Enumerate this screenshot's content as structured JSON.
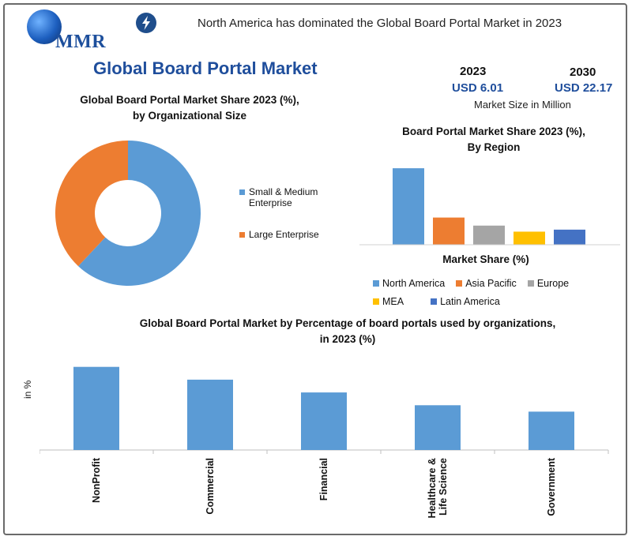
{
  "header": {
    "logo_text": "MMR",
    "headline": "North America has dominated the Global Board Portal Market in 2023"
  },
  "main_title": "Global Board Portal Market",
  "market_size": {
    "year_1": "2023",
    "value_1": "USD 6.01",
    "year_2": "2030",
    "value_2": "USD 22.17",
    "note": "Market Size in Million"
  },
  "colors": {
    "blue": "#5b9bd5",
    "orange": "#ed7d31",
    "gray": "#a5a5a5",
    "yellow": "#ffc000",
    "darkblue": "#4472c4",
    "accent": "#1f4e9c"
  },
  "chart_data": [
    {
      "id": "donut",
      "type": "pie",
      "title_line1": "Global Board Portal Market Share 2023 (%),",
      "title_line2": "by Organizational Size",
      "categories": [
        "Small & Medium Enterprise",
        "Large Enterprise"
      ],
      "values": [
        62,
        38
      ]
    },
    {
      "id": "region",
      "type": "bar",
      "title_line1": "Board Portal Market Share 2023 (%),",
      "title_line2": "By Region",
      "xlabel": "Market Share (%)",
      "categories": [
        "North America",
        "Asia Pacific",
        "Europe",
        "MEA",
        "Latin America"
      ],
      "values": [
        38,
        13.5,
        9.5,
        6.5,
        7.5
      ],
      "ylim": [
        0,
        40
      ]
    },
    {
      "id": "orgs",
      "type": "bar",
      "title_line1": "Global Board Portal Market by Percentage of board portals used by organizations,",
      "title_line2": "in 2023 (%)",
      "ylabel": "in %",
      "categories": [
        "NonProfit",
        "Commercial",
        "Financial",
        "Healthcare & Life Science",
        "Government"
      ],
      "tick_lines": [
        [
          "NonProfit"
        ],
        [
          "Commercial"
        ],
        [
          "Financial"
        ],
        [
          "Healthcare &",
          "Life Science"
        ],
        [
          "Government"
        ]
      ],
      "values": [
        39,
        33,
        27,
        21,
        18
      ],
      "ylim": [
        0,
        40
      ]
    }
  ]
}
